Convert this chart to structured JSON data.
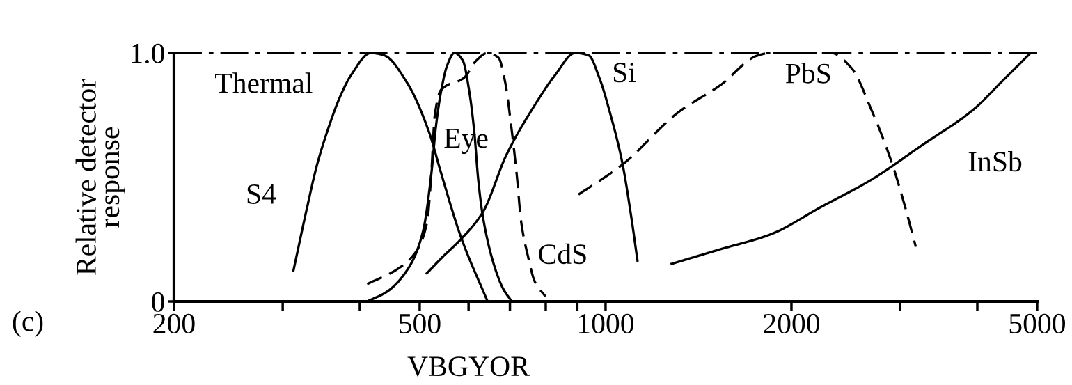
{
  "chart_data": {
    "type": "line",
    "ylabel": "Relative detector\nresponse",
    "annotations": [
      "(c)",
      "VBGYOR"
    ],
    "log": "x",
    "xlim": [
      200,
      5000
    ],
    "xticks": [
      200,
      {
        "value": 300,
        "label": null
      },
      {
        "value": 400,
        "label": null
      },
      500,
      {
        "value": 600,
        "label": null
      },
      {
        "value": 700,
        "label": null
      },
      {
        "value": 800,
        "label": null
      },
      {
        "value": 900,
        "label": null
      },
      1000,
      2000,
      {
        "value": 3000,
        "label": null
      },
      {
        "value": 4000,
        "label": null
      },
      5000
    ],
    "ylim": [
      0,
      1
    ],
    "yticks": [
      0,
      {
        "value": 1,
        "label": "1.0"
      }
    ],
    "grid": false,
    "legend": false,
    "ref_lines": [
      {
        "axis": "y",
        "value": 1.0,
        "label": "Thermal",
        "color": "#000000",
        "line_style": "dashdot"
      }
    ],
    "series": [
      {
        "name": "S4",
        "color": "#000000",
        "line_style": "solid",
        "x": [
          312,
          328,
          341,
          356,
          371,
          387,
          417,
          438,
          477,
          518,
          541,
          583,
          644
        ],
        "values": [
          0.12,
          0.37,
          0.55,
          0.7,
          0.82,
          0.91,
          1.0,
          0.99,
          0.88,
          0.68,
          0.52,
          0.26,
          0.0
        ]
      },
      {
        "name": "Eye",
        "color": "#000000",
        "line_style": "solid",
        "x": [
          411,
          443,
          481,
          506,
          522,
          531,
          541,
          554,
          569,
          587,
          602,
          613,
          622,
          633,
          661,
          683,
          705
        ],
        "values": [
          0.0,
          0.04,
          0.14,
          0.28,
          0.51,
          0.7,
          0.84,
          0.95,
          1.0,
          0.97,
          0.84,
          0.68,
          0.49,
          0.34,
          0.14,
          0.05,
          0.0
        ]
      },
      {
        "name": "CdS",
        "color": "#000000",
        "line_style": "dashed",
        "x": [
          411,
          460,
          493,
          514,
          522,
          529,
          541,
          590,
          618,
          644,
          671,
          688,
          703,
          718,
          730,
          749,
          768,
          799
        ],
        "values": [
          0.07,
          0.13,
          0.2,
          0.32,
          0.51,
          0.75,
          0.85,
          0.9,
          0.97,
          1.0,
          0.98,
          0.88,
          0.71,
          0.51,
          0.32,
          0.18,
          0.08,
          0.02
        ]
      },
      {
        "name": "Si",
        "color": "#000000",
        "line_style": "solid",
        "x": [
          512,
          545,
          583,
          633,
          691,
          768,
          828,
          893,
          939,
          977,
          1019,
          1064,
          1099,
          1127
        ],
        "values": [
          0.11,
          0.18,
          0.25,
          0.36,
          0.59,
          0.79,
          0.91,
          1.0,
          0.99,
          0.9,
          0.75,
          0.56,
          0.35,
          0.16
        ]
      },
      {
        "name": "PbS",
        "color": "#000000",
        "line_style": "dashed",
        "x": [
          904,
          1064,
          1310,
          1534,
          1765,
          1851,
          2318,
          2500,
          2696,
          2906,
          3048,
          3180
        ],
        "values": [
          0.43,
          0.55,
          0.76,
          0.87,
          0.99,
          1.0,
          1.0,
          0.94,
          0.77,
          0.56,
          0.39,
          0.22
        ]
      },
      {
        "name": "InSb",
        "color": "#000000",
        "line_style": "solid",
        "x": [
          1274,
          1534,
          1851,
          2233,
          2696,
          3260,
          3934,
          4404,
          4880
        ],
        "values": [
          0.15,
          0.21,
          0.27,
          0.38,
          0.49,
          0.63,
          0.77,
          0.89,
          1.0
        ]
      }
    ]
  }
}
